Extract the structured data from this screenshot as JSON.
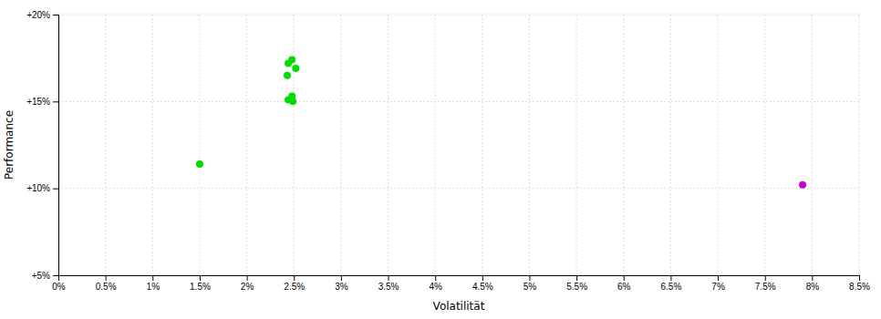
{
  "chart_data": {
    "type": "scatter",
    "xlabel": "Volatilität",
    "ylabel": "Performance",
    "xlim": [
      0,
      0.085
    ],
    "ylim": [
      0.05,
      0.2
    ],
    "xticks": [
      {
        "value": 0,
        "label": "0%"
      },
      {
        "value": 0.005,
        "label": "0.5%"
      },
      {
        "value": 0.01,
        "label": "1%"
      },
      {
        "value": 0.015,
        "label": "1.5%"
      },
      {
        "value": 0.02,
        "label": "2%"
      },
      {
        "value": 0.025,
        "label": "2.5%"
      },
      {
        "value": 0.03,
        "label": "3%"
      },
      {
        "value": 0.035,
        "label": "3.5%"
      },
      {
        "value": 0.04,
        "label": "4%"
      },
      {
        "value": 0.045,
        "label": "4.5%"
      },
      {
        "value": 0.05,
        "label": "5%"
      },
      {
        "value": 0.055,
        "label": "5.5%"
      },
      {
        "value": 0.06,
        "label": "6%"
      },
      {
        "value": 0.065,
        "label": "6.5%"
      },
      {
        "value": 0.07,
        "label": "7%"
      },
      {
        "value": 0.075,
        "label": "7.5%"
      },
      {
        "value": 0.08,
        "label": "8%"
      },
      {
        "value": 0.085,
        "label": "8.5%"
      }
    ],
    "yticks": [
      {
        "value": 0.05,
        "label": "+5%"
      },
      {
        "value": 0.1,
        "label": "+10%"
      },
      {
        "value": 0.15,
        "label": "+15%"
      },
      {
        "value": 0.2,
        "label": "+20%"
      }
    ],
    "grid": true,
    "series": [
      {
        "color": "#00dd00",
        "x": [
          0.0248,
          0.0244,
          0.0252,
          0.0243,
          0.0248,
          0.0244,
          0.0249,
          0.015
        ],
        "values": [
          0.174,
          0.172,
          0.169,
          0.165,
          0.153,
          0.151,
          0.15,
          0.114
        ]
      },
      {
        "color": "#cc00cc",
        "x": [
          0.079
        ],
        "values": [
          0.102
        ]
      }
    ]
  }
}
